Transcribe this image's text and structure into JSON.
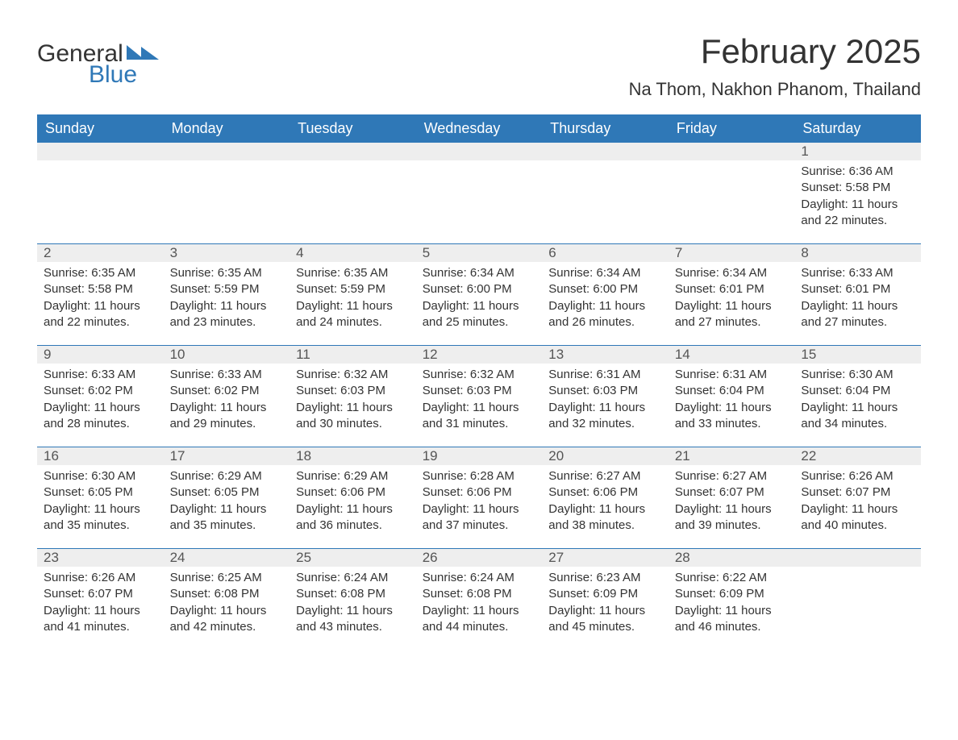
{
  "logo": {
    "word1": "General",
    "word2": "Blue",
    "accent_color": "#2f78b7"
  },
  "title": "February 2025",
  "location": "Na Thom, Nakhon Phanom, Thailand",
  "weekdays": [
    "Sunday",
    "Monday",
    "Tuesday",
    "Wednesday",
    "Thursday",
    "Friday",
    "Saturday"
  ],
  "style": {
    "header_bg": "#2f78b7",
    "header_text": "#ffffff",
    "row_rule": "#2f78b7",
    "daynum_bg": "#eeeeee",
    "text_color": "#333333",
    "title_fontsize": 42,
    "location_fontsize": 22,
    "weekday_fontsize": 18,
    "daynum_fontsize": 17,
    "detail_fontsize": 15
  },
  "weeks": [
    [
      {
        "day": null
      },
      {
        "day": null
      },
      {
        "day": null
      },
      {
        "day": null
      },
      {
        "day": null
      },
      {
        "day": null
      },
      {
        "day": 1,
        "sunrise": "6:36 AM",
        "sunset": "5:58 PM",
        "daylight": "11 hours and 22 minutes."
      }
    ],
    [
      {
        "day": 2,
        "sunrise": "6:35 AM",
        "sunset": "5:58 PM",
        "daylight": "11 hours and 22 minutes."
      },
      {
        "day": 3,
        "sunrise": "6:35 AM",
        "sunset": "5:59 PM",
        "daylight": "11 hours and 23 minutes."
      },
      {
        "day": 4,
        "sunrise": "6:35 AM",
        "sunset": "5:59 PM",
        "daylight": "11 hours and 24 minutes."
      },
      {
        "day": 5,
        "sunrise": "6:34 AM",
        "sunset": "6:00 PM",
        "daylight": "11 hours and 25 minutes."
      },
      {
        "day": 6,
        "sunrise": "6:34 AM",
        "sunset": "6:00 PM",
        "daylight": "11 hours and 26 minutes."
      },
      {
        "day": 7,
        "sunrise": "6:34 AM",
        "sunset": "6:01 PM",
        "daylight": "11 hours and 27 minutes."
      },
      {
        "day": 8,
        "sunrise": "6:33 AM",
        "sunset": "6:01 PM",
        "daylight": "11 hours and 27 minutes."
      }
    ],
    [
      {
        "day": 9,
        "sunrise": "6:33 AM",
        "sunset": "6:02 PM",
        "daylight": "11 hours and 28 minutes."
      },
      {
        "day": 10,
        "sunrise": "6:33 AM",
        "sunset": "6:02 PM",
        "daylight": "11 hours and 29 minutes."
      },
      {
        "day": 11,
        "sunrise": "6:32 AM",
        "sunset": "6:03 PM",
        "daylight": "11 hours and 30 minutes."
      },
      {
        "day": 12,
        "sunrise": "6:32 AM",
        "sunset": "6:03 PM",
        "daylight": "11 hours and 31 minutes."
      },
      {
        "day": 13,
        "sunrise": "6:31 AM",
        "sunset": "6:03 PM",
        "daylight": "11 hours and 32 minutes."
      },
      {
        "day": 14,
        "sunrise": "6:31 AM",
        "sunset": "6:04 PM",
        "daylight": "11 hours and 33 minutes."
      },
      {
        "day": 15,
        "sunrise": "6:30 AM",
        "sunset": "6:04 PM",
        "daylight": "11 hours and 34 minutes."
      }
    ],
    [
      {
        "day": 16,
        "sunrise": "6:30 AM",
        "sunset": "6:05 PM",
        "daylight": "11 hours and 35 minutes."
      },
      {
        "day": 17,
        "sunrise": "6:29 AM",
        "sunset": "6:05 PM",
        "daylight": "11 hours and 35 minutes."
      },
      {
        "day": 18,
        "sunrise": "6:29 AM",
        "sunset": "6:06 PM",
        "daylight": "11 hours and 36 minutes."
      },
      {
        "day": 19,
        "sunrise": "6:28 AM",
        "sunset": "6:06 PM",
        "daylight": "11 hours and 37 minutes."
      },
      {
        "day": 20,
        "sunrise": "6:27 AM",
        "sunset": "6:06 PM",
        "daylight": "11 hours and 38 minutes."
      },
      {
        "day": 21,
        "sunrise": "6:27 AM",
        "sunset": "6:07 PM",
        "daylight": "11 hours and 39 minutes."
      },
      {
        "day": 22,
        "sunrise": "6:26 AM",
        "sunset": "6:07 PM",
        "daylight": "11 hours and 40 minutes."
      }
    ],
    [
      {
        "day": 23,
        "sunrise": "6:26 AM",
        "sunset": "6:07 PM",
        "daylight": "11 hours and 41 minutes."
      },
      {
        "day": 24,
        "sunrise": "6:25 AM",
        "sunset": "6:08 PM",
        "daylight": "11 hours and 42 minutes."
      },
      {
        "day": 25,
        "sunrise": "6:24 AM",
        "sunset": "6:08 PM",
        "daylight": "11 hours and 43 minutes."
      },
      {
        "day": 26,
        "sunrise": "6:24 AM",
        "sunset": "6:08 PM",
        "daylight": "11 hours and 44 minutes."
      },
      {
        "day": 27,
        "sunrise": "6:23 AM",
        "sunset": "6:09 PM",
        "daylight": "11 hours and 45 minutes."
      },
      {
        "day": 28,
        "sunrise": "6:22 AM",
        "sunset": "6:09 PM",
        "daylight": "11 hours and 46 minutes."
      },
      {
        "day": null
      }
    ]
  ],
  "labels": {
    "sunrise": "Sunrise:",
    "sunset": "Sunset:",
    "daylight": "Daylight:"
  }
}
